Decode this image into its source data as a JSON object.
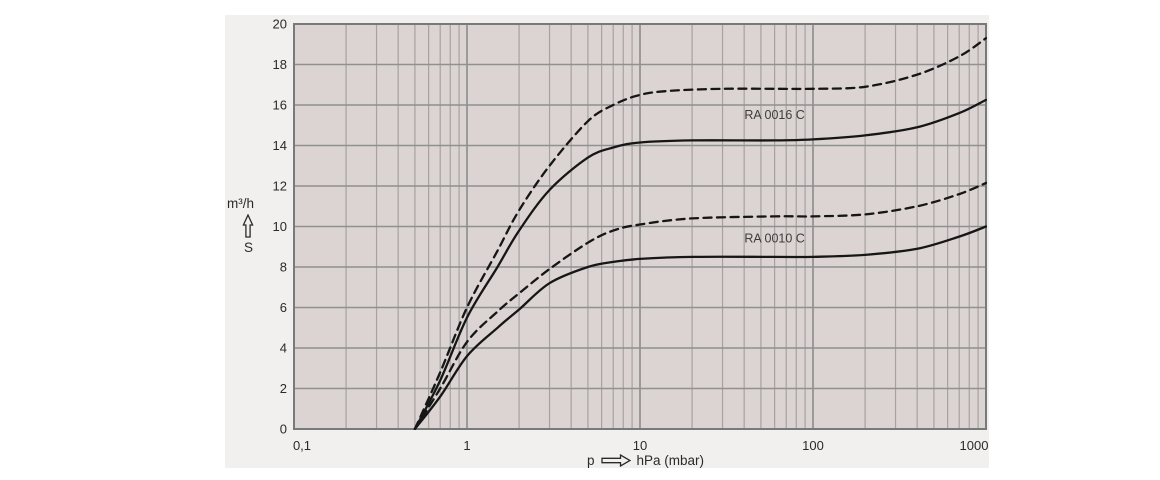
{
  "colors": {
    "page_bg": "#ffffff",
    "panel_bg": "#f2f0ee",
    "plot_bg": "#dcd4d3",
    "grid_major": "#8f9091",
    "grid_minor": "#a5a2a1",
    "plot_border": "#77797b",
    "curve": "#161616",
    "text": "#2a2a2a",
    "label_text": "#3c3c3c"
  },
  "chart_data": {
    "type": "line",
    "title": "",
    "x_scale": "log",
    "xlim": [
      0.1,
      1000
    ],
    "ylim": [
      0,
      20
    ],
    "grid": "major-and-log-minor",
    "xlabel_symbol": "p",
    "xlabel_unit": "hPa (mbar)",
    "ylabel_unit": "m³/h",
    "ylabel_symbol": "S",
    "x_ticks": [
      {
        "v": 0.1,
        "label": "0,1",
        "dx": 8
      },
      {
        "v": 1,
        "label": "1",
        "dx": 0
      },
      {
        "v": 10,
        "label": "10",
        "dx": 0
      },
      {
        "v": 100,
        "label": "100",
        "dx": 0
      },
      {
        "v": 1000,
        "label": "1000",
        "dx": -12
      }
    ],
    "y_ticks": [
      {
        "v": 0,
        "label": "0"
      },
      {
        "v": 2,
        "label": "2"
      },
      {
        "v": 4,
        "label": "4"
      },
      {
        "v": 6,
        "label": "6"
      },
      {
        "v": 8,
        "label": "8"
      },
      {
        "v": 10,
        "label": "10"
      },
      {
        "v": 12,
        "label": "12"
      },
      {
        "v": 14,
        "label": "14"
      },
      {
        "v": 16,
        "label": "16"
      },
      {
        "v": 18,
        "label": "18"
      },
      {
        "v": 20,
        "label": "20"
      }
    ],
    "series": [
      {
        "label": "RA 0016 C",
        "style": "dashed",
        "points": [
          [
            0.5,
            0
          ],
          [
            0.7,
            2.8
          ],
          [
            1,
            6.0
          ],
          [
            1.5,
            8.8
          ],
          [
            2,
            10.8
          ],
          [
            3,
            13.0
          ],
          [
            5,
            15.2
          ],
          [
            7,
            16.0
          ],
          [
            10,
            16.5
          ],
          [
            15,
            16.7
          ],
          [
            30,
            16.8
          ],
          [
            60,
            16.8
          ],
          [
            100,
            16.8
          ],
          [
            200,
            16.9
          ],
          [
            400,
            17.5
          ],
          [
            700,
            18.4
          ],
          [
            1000,
            19.3
          ]
        ]
      },
      {
        "label": "RA 0016 C",
        "style": "solid",
        "points": [
          [
            0.5,
            0
          ],
          [
            0.7,
            2.4
          ],
          [
            1,
            5.5
          ],
          [
            1.5,
            8.0
          ],
          [
            2,
            9.8
          ],
          [
            3,
            11.8
          ],
          [
            5,
            13.4
          ],
          [
            7,
            13.9
          ],
          [
            10,
            14.15
          ],
          [
            20,
            14.25
          ],
          [
            60,
            14.25
          ],
          [
            100,
            14.3
          ],
          [
            200,
            14.5
          ],
          [
            400,
            14.9
          ],
          [
            700,
            15.6
          ],
          [
            1000,
            16.25
          ]
        ]
      },
      {
        "label": "RA 0010 C",
        "style": "dashed",
        "points": [
          [
            0.5,
            0
          ],
          [
            0.7,
            2.0
          ],
          [
            1,
            4.3
          ],
          [
            1.5,
            5.8
          ],
          [
            2,
            6.7
          ],
          [
            3,
            7.9
          ],
          [
            5,
            9.2
          ],
          [
            7,
            9.8
          ],
          [
            10,
            10.1
          ],
          [
            20,
            10.4
          ],
          [
            60,
            10.5
          ],
          [
            100,
            10.5
          ],
          [
            200,
            10.6
          ],
          [
            400,
            11.0
          ],
          [
            700,
            11.6
          ],
          [
            1000,
            12.15
          ]
        ]
      },
      {
        "label": "RA 0010 C",
        "style": "solid",
        "points": [
          [
            0.5,
            0
          ],
          [
            0.7,
            1.6
          ],
          [
            1,
            3.6
          ],
          [
            1.5,
            5.0
          ],
          [
            2,
            5.9
          ],
          [
            3,
            7.2
          ],
          [
            5,
            8.0
          ],
          [
            7,
            8.25
          ],
          [
            10,
            8.4
          ],
          [
            20,
            8.5
          ],
          [
            60,
            8.5
          ],
          [
            100,
            8.5
          ],
          [
            200,
            8.6
          ],
          [
            400,
            8.9
          ],
          [
            700,
            9.5
          ],
          [
            1000,
            10.0
          ]
        ]
      }
    ],
    "annotations": [
      {
        "text": "RA 0016 C",
        "p": 60,
        "s": 15.5
      },
      {
        "text": "RA 0010 C",
        "p": 60,
        "s": 9.4
      }
    ]
  }
}
